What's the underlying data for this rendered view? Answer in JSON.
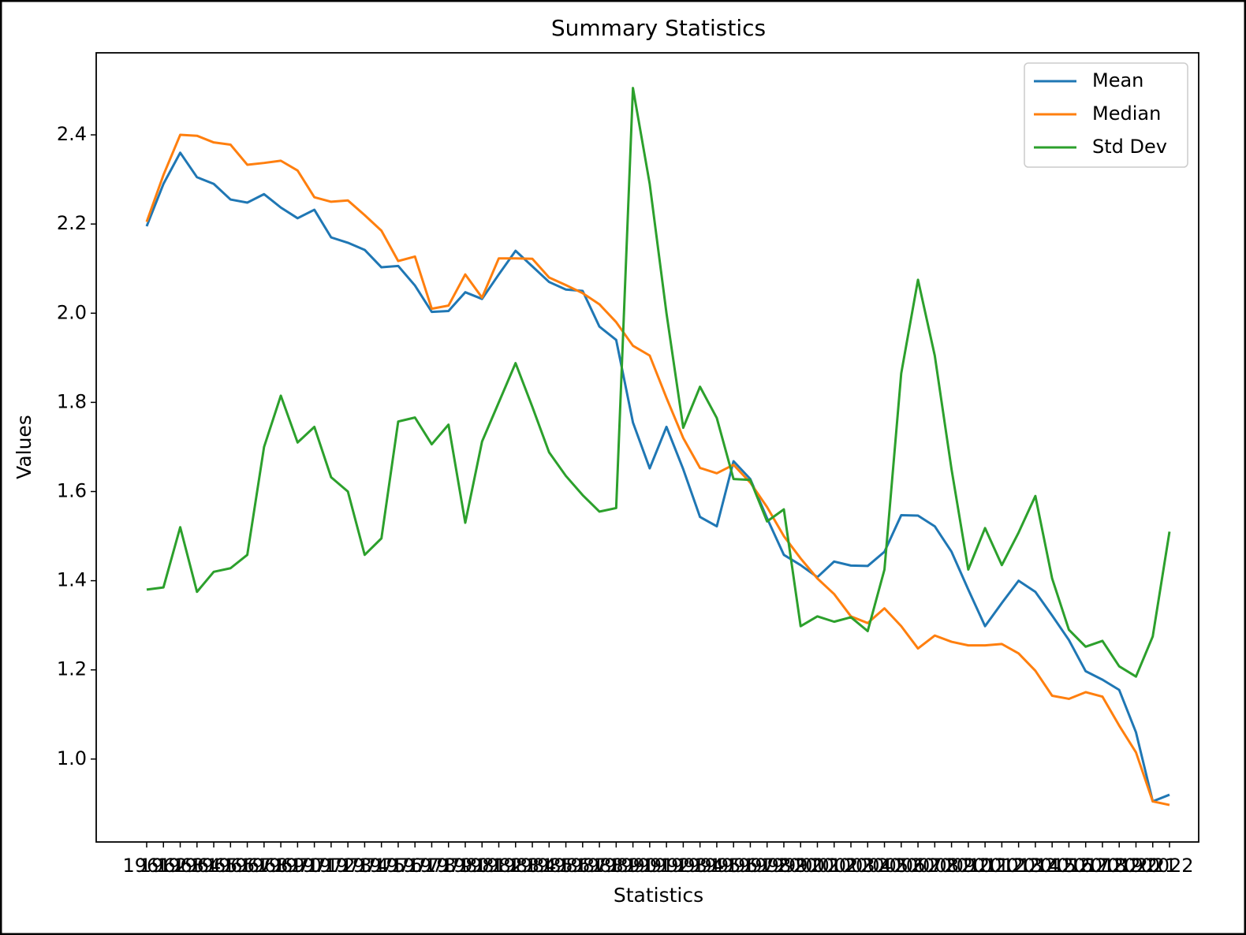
{
  "chart_data": {
    "type": "line",
    "title": "Summary Statistics",
    "x_label": "Statistics",
    "y_label": "Values",
    "categories": [
      "1961",
      "1962",
      "1963",
      "1964",
      "1965",
      "1966",
      "1967",
      "1968",
      "1969",
      "1970",
      "1971",
      "1972",
      "1973",
      "1974",
      "1975",
      "1976",
      "1977",
      "1978",
      "1979",
      "1980",
      "1981",
      "1982",
      "1983",
      "1984",
      "1985",
      "1986",
      "1987",
      "1988",
      "1989",
      "1990",
      "1991",
      "1992",
      "1993",
      "1994",
      "1995",
      "1996",
      "1997",
      "1998",
      "1999",
      "2000",
      "2001",
      "2002",
      "2003",
      "2004",
      "2005",
      "2006",
      "2007",
      "2008",
      "2009",
      "2010",
      "2011",
      "2012",
      "2013",
      "2014",
      "2015",
      "2016",
      "2017",
      "2018",
      "2019",
      "2020",
      "2021",
      "2022"
    ],
    "series": [
      {
        "name": "Mean",
        "color": "#1f77b4",
        "values": [
          2.195,
          2.29,
          2.36,
          2.305,
          2.29,
          2.255,
          2.248,
          2.267,
          2.237,
          2.213,
          2.232,
          2.17,
          2.158,
          2.142,
          2.103,
          2.106,
          2.062,
          2.003,
          2.005,
          2.047,
          2.032,
          2.087,
          2.14,
          2.105,
          2.07,
          2.053,
          2.05,
          1.97,
          1.94,
          1.755,
          1.652,
          1.745,
          1.65,
          1.543,
          1.522,
          1.668,
          1.628,
          1.54,
          1.458,
          1.435,
          1.408,
          1.443,
          1.434,
          1.433,
          1.465,
          1.547,
          1.546,
          1.522,
          1.465,
          1.38,
          1.298,
          1.35,
          1.4,
          1.375,
          1.322,
          1.267,
          1.197,
          1.178,
          1.155,
          1.06,
          0.905,
          0.92
        ]
      },
      {
        "name": "Median",
        "color": "#ff7f0e",
        "values": [
          2.205,
          2.31,
          2.4,
          2.398,
          2.383,
          2.378,
          2.333,
          2.337,
          2.342,
          2.32,
          2.26,
          2.25,
          2.253,
          2.22,
          2.185,
          2.117,
          2.127,
          2.01,
          2.017,
          2.087,
          2.035,
          2.123,
          2.123,
          2.122,
          2.08,
          2.063,
          2.045,
          2.02,
          1.98,
          1.927,
          1.905,
          1.81,
          1.72,
          1.653,
          1.641,
          1.66,
          1.62,
          1.565,
          1.5,
          1.45,
          1.405,
          1.37,
          1.32,
          1.305,
          1.338,
          1.298,
          1.248,
          1.277,
          1.263,
          1.255,
          1.255,
          1.258,
          1.237,
          1.198,
          1.142,
          1.135,
          1.15,
          1.14,
          1.075,
          1.015,
          0.905,
          0.897
        ]
      },
      {
        "name": "Std Dev",
        "color": "#2ca02c",
        "values": [
          1.38,
          1.385,
          1.52,
          1.375,
          1.42,
          1.428,
          1.458,
          1.7,
          1.815,
          1.71,
          1.745,
          1.632,
          1.6,
          1.458,
          1.495,
          1.757,
          1.766,
          1.706,
          1.75,
          1.53,
          1.712,
          1.8,
          1.888,
          1.79,
          1.688,
          1.635,
          1.592,
          1.555,
          1.563,
          2.505,
          2.29,
          2.0,
          1.743,
          1.835,
          1.765,
          1.628,
          1.626,
          1.533,
          1.56,
          1.298,
          1.32,
          1.308,
          1.318,
          1.287,
          1.425,
          1.865,
          2.075,
          1.905,
          1.65,
          1.425,
          1.518,
          1.435,
          1.508,
          1.59,
          1.405,
          1.29,
          1.252,
          1.265,
          1.208,
          1.185,
          1.275,
          1.51
        ]
      }
    ],
    "ylim": [
      0.814,
      2.584
    ],
    "yticks": [
      {
        "value": 1.0,
        "label": "1.0"
      },
      1.2,
      1.4,
      1.6,
      1.8,
      {
        "value": 2.0,
        "label": "2.0"
      },
      2.2,
      2.4
    ],
    "legend": "upper right"
  }
}
